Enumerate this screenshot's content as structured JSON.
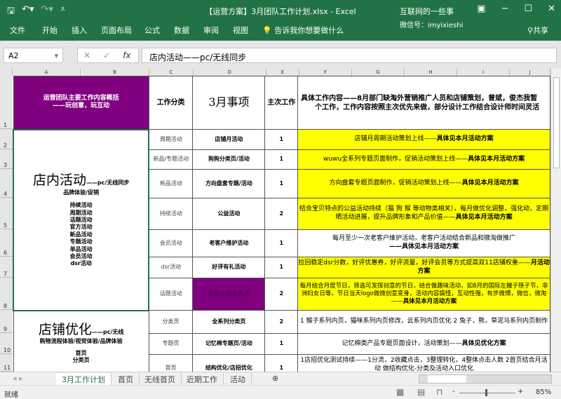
{
  "window": {
    "title": "【运营方案】3月团队工作计划.xlsx - Excel",
    "watermark_line1": "互联网的一些事",
    "watermark_line2": "微信号：imyixieshi",
    "share": "共享"
  },
  "ribbon": {
    "tabs": [
      "文件",
      "开始",
      "插入",
      "页面布局",
      "公式",
      "数据",
      "审阅",
      "视图"
    ],
    "tell_me": "告诉我你想要做什么"
  },
  "formula": {
    "name_box": "A2",
    "content": "店内活动——pc/无线同步"
  },
  "columns": [
    "A",
    "B",
    "C",
    "D",
    "E",
    "F",
    "G",
    "H",
    "I",
    "J"
  ],
  "rows": [
    "1",
    "2",
    "3",
    "4",
    "5",
    "6",
    "7",
    "8",
    "9",
    "10",
    "11"
  ],
  "header_row": {
    "a1": "运营团队主要工作内容概括",
    "a1_sub": "——玩创意，玩互动",
    "c": "工作分类",
    "d": "3月事项",
    "e": "主次工作",
    "f_line1": "具体工作内容——8月部门缺淘外营销推广人员和店铺策划，曾斌，俊杰我暂",
    "f_line2": "个工作，工作内容按照主次优先来做，部分设计工作结合设计师时间灵活"
  },
  "block1": {
    "title": "店内活动",
    "title_suffix": "——pc/无线同步",
    "subtitle": "品牌体验/促销",
    "items": [
      "持续活动",
      "周期活动",
      "话题活动",
      "官方活动",
      "新品活动",
      "专题活动",
      "单品活动",
      "会员活动",
      "dsr活动"
    ]
  },
  "block2": {
    "title": "店铺优化",
    "title_suffix": "——pc/无线",
    "subtitle": "购物流程体验/视觉体验/品牌体验",
    "items": [
      "首页",
      "分类页"
    ]
  },
  "plan_suffix": "——具体见本月活动方案",
  "tasks": [
    {
      "category": "周期活动",
      "item": "店铺月活动",
      "priority": "1",
      "detail": "店铺月周期活动策划上线——",
      "bold": "具体见本月活动方案"
    },
    {
      "category": "新品/专题活动",
      "item": "狗狗分类页/活动",
      "priority": "1",
      "detail": "wuwu全系列专题页面制作，促销活动策划上线——",
      "bold": "具体见本月活动方案"
    },
    {
      "category": "新品活动",
      "item": "方向盘套专题/活动",
      "priority": "1",
      "detail": "方向盘套专题页面制作，促销活动策划上线——",
      "bold": "具体见本月活动方案"
    },
    {
      "category": "持续活动",
      "item": "公益活动",
      "priority": "2",
      "detail": "结合宝贝特点的公益活动持续（猫 狗 猴 等动物类相关），每月做优化调整，强化动，定期晒活动进展，提升品牌形象和产品价值——",
      "bold": "具体见本月活动方案"
    },
    {
      "category": "会员活动",
      "item": "老客户维护活动",
      "priority": "1",
      "detail": "每月至少一次老客户维护活动，老客户活动结合新品和微淘做推广",
      "bold": "——具体见本月活动方案"
    },
    {
      "category": "dsr活动",
      "item": "好评有礼活动",
      "priority": "1",
      "detail": "拉回稳定dsr分数，好评优惠券，好评流量，好评会员等方式提高双11店铺权重——",
      "bold": "月活动方案"
    },
    {
      "category": "话题活动",
      "item": "创意小活动/热点",
      "priority": "2",
      "detail": "每月结合月度节日，筛选可发挥创意的节日，结合做趣味活动，如8月的国际左撇子筷子节，非洲妇女日等，节日当天logo做微创意变身，活动内容搞怪，互动性强，有步微博，微信，微淘——",
      "bold": "具体见本月活动方案"
    },
    {
      "category": "分类页",
      "item": "全系列分类页",
      "priority": "2",
      "detail": "1 猴子系列内页，猫咪系列内页修改，云系列内页优化 2 兔子，熊，草泥马系列内页制作",
      "bold": ""
    },
    {
      "category": "专题页",
      "item": "记忆棉专题页/活动",
      "priority": "1",
      "detail": "记忆棉类产品专题页面设计，活动策划——",
      "bold": "具体见优化方案"
    },
    {
      "category": "首页",
      "item": "结构优化/店招优化",
      "priority": "1",
      "detail": "1店招优化测试持续——1分流，2收藏点击，3整理转化，4整体点击人数 2首页结合月活动 做结构优化-分类及活动入口优化",
      "bold": ""
    }
  ],
  "sheets": [
    "3月工作计划",
    "首页",
    "无线首页",
    "近期工作",
    "活动"
  ],
  "status": {
    "ready": "就绪",
    "zoom": "85%"
  },
  "colors": {
    "excel_green": "#217346",
    "purple": "#800080",
    "yellow": "#ffff00"
  }
}
